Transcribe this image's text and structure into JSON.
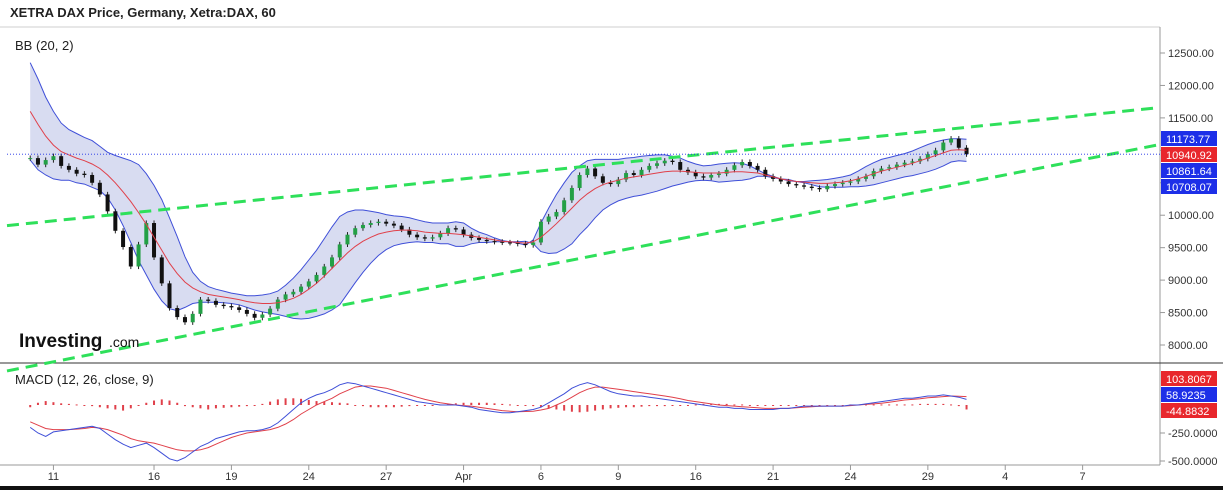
{
  "header": {
    "title": "XETRA DAX Price, Germany, Xetra:DAX, 60"
  },
  "logo": {
    "main": "Investing",
    "suffix": ".com"
  },
  "colors": {
    "up": "#23a046",
    "down": "#111111",
    "band_fill": "#d8dcf1",
    "band_line": "#3f4fd8",
    "bb_mid": "#e0404a",
    "channel": "#2ee05a",
    "macd_line": "#3f4fd8",
    "signal_line": "#e0404a",
    "badge_red": "#e8272c",
    "badge_blue": "#1d2fe8"
  },
  "chart_data": [
    {
      "type": "line",
      "name": "price",
      "subtitle": "BB (20, 2)",
      "yticks": [
        "12500.00",
        "12000.00",
        "11500.00",
        "11000.00",
        "10500.00",
        "10000.00",
        "9500.00",
        "9000.00",
        "8500.00",
        "8000.00"
      ],
      "ylim": [
        7800,
        12650
      ],
      "x_labels": [
        "11",
        "16",
        "19",
        "24",
        "27",
        "Apr",
        "6",
        "9",
        "16",
        "21",
        "24",
        "29",
        "4",
        "7"
      ],
      "x_label_positions": [
        3,
        16,
        26,
        36,
        46,
        56,
        66,
        76,
        86,
        96,
        106,
        116,
        126,
        136
      ],
      "xlim": [
        -3,
        146
      ],
      "close_series": [
        10880,
        10780,
        10850,
        10910,
        10760,
        10700,
        10640,
        10620,
        10500,
        10320,
        10060,
        9760,
        9510,
        9210,
        9550,
        9880,
        9350,
        8950,
        8570,
        8430,
        8350,
        8480,
        8700,
        8680,
        8620,
        8600,
        8580,
        8540,
        8480,
        8420,
        8470,
        8560,
        8700,
        8780,
        8820,
        8900,
        8980,
        9080,
        9210,
        9350,
        9550,
        9700,
        9800,
        9850,
        9880,
        9900,
        9870,
        9840,
        9780,
        9700,
        9660,
        9640,
        9660,
        9720,
        9800,
        9780,
        9700,
        9650,
        9620,
        9600,
        9590,
        9580,
        9575,
        9560,
        9540,
        9580,
        9900,
        9980,
        10050,
        10230,
        10420,
        10620,
        10720,
        10600,
        10500,
        10480,
        10550,
        10650,
        10620,
        10700,
        10760,
        10800,
        10840,
        10820,
        10700,
        10660,
        10600,
        10580,
        10620,
        10640,
        10700,
        10770,
        10820,
        10760,
        10700,
        10600,
        10560,
        10520,
        10480,
        10460,
        10440,
        10420,
        10400,
        10450,
        10480,
        10500,
        10520,
        10560,
        10600,
        10680,
        10720,
        10740,
        10780,
        10810,
        10830,
        10870,
        10940,
        11000,
        11120,
        11180,
        11040,
        10940
      ],
      "bb_upper": [
        12350,
        12100,
        11820,
        11600,
        11420,
        11320,
        11260,
        11200,
        11150,
        11060,
        10970,
        10920,
        10880,
        10840,
        10780,
        10640,
        10460,
        10240,
        9960,
        9670,
        9360,
        9120,
        8980,
        8900,
        8860,
        8830,
        8800,
        8780,
        8760,
        8760,
        8770,
        8790,
        8830,
        8920,
        9030,
        9160,
        9310,
        9460,
        9640,
        9820,
        9980,
        10050,
        10080,
        10080,
        10060,
        10040,
        10010,
        9990,
        9980,
        9960,
        9930,
        9900,
        9880,
        9880,
        9880,
        9900,
        9880,
        9800,
        9740,
        9700,
        9650,
        9610,
        9590,
        9570,
        9540,
        9620,
        9880,
        10110,
        10320,
        10500,
        10660,
        10760,
        10840,
        10860,
        10860,
        10860,
        10860,
        10880,
        10890,
        10910,
        10920,
        10930,
        10930,
        10910,
        10880,
        10830,
        10790,
        10760,
        10770,
        10790,
        10800,
        10810,
        10800,
        10760,
        10700,
        10640,
        10600,
        10560,
        10530,
        10520,
        10520,
        10530,
        10540,
        10550,
        10570,
        10590,
        10620,
        10680,
        10750,
        10810,
        10860,
        10890,
        10920,
        10950,
        10990,
        11040,
        11090,
        11130,
        11160,
        11180,
        11180,
        11170
      ],
      "bb_mid": [
        11600,
        11400,
        11220,
        11080,
        10980,
        10930,
        10880,
        10840,
        10790,
        10720,
        10620,
        10500,
        10360,
        10210,
        10040,
        9860,
        9660,
        9460,
        9260,
        9100,
        8970,
        8880,
        8820,
        8780,
        8760,
        8740,
        8720,
        8700,
        8670,
        8650,
        8640,
        8640,
        8650,
        8680,
        8720,
        8780,
        8860,
        8950,
        9060,
        9180,
        9300,
        9420,
        9520,
        9600,
        9660,
        9710,
        9740,
        9760,
        9770,
        9770,
        9760,
        9740,
        9730,
        9720,
        9720,
        9710,
        9700,
        9680,
        9660,
        9640,
        9620,
        9600,
        9590,
        9580,
        9570,
        9590,
        9660,
        9760,
        9870,
        9990,
        10110,
        10230,
        10330,
        10410,
        10470,
        10510,
        10540,
        10570,
        10590,
        10610,
        10630,
        10650,
        10670,
        10680,
        10680,
        10670,
        10660,
        10650,
        10650,
        10650,
        10660,
        10670,
        10670,
        10660,
        10650,
        10620,
        10590,
        10560,
        10540,
        10520,
        10510,
        10500,
        10490,
        10490,
        10500,
        10510,
        10530,
        10560,
        10600,
        10640,
        10680,
        10710,
        10740,
        10770,
        10800,
        10840,
        10880,
        10920,
        10960,
        11000,
        11010,
        11000
      ],
      "bb_lower": [
        10850,
        10700,
        10620,
        10560,
        10540,
        10540,
        10500,
        10480,
        10430,
        10380,
        10270,
        10080,
        9840,
        9580,
        9300,
        9080,
        8860,
        8680,
        8560,
        8530,
        8580,
        8640,
        8660,
        8660,
        8660,
        8650,
        8640,
        8620,
        8580,
        8540,
        8510,
        8490,
        8470,
        8440,
        8410,
        8400,
        8410,
        8440,
        8480,
        8540,
        8620,
        8790,
        8960,
        9120,
        9260,
        9380,
        9470,
        9530,
        9560,
        9580,
        9590,
        9580,
        9580,
        9560,
        9560,
        9520,
        9520,
        9560,
        9580,
        9580,
        9590,
        9590,
        9590,
        9590,
        9600,
        9560,
        9440,
        9410,
        9420,
        9480,
        9560,
        9700,
        9820,
        9960,
        10080,
        10160,
        10220,
        10260,
        10290,
        10310,
        10340,
        10370,
        10410,
        10450,
        10480,
        10510,
        10530,
        10540,
        10530,
        10510,
        10520,
        10530,
        10540,
        10560,
        10600,
        10600,
        10580,
        10560,
        10550,
        10520,
        10500,
        10470,
        10440,
        10430,
        10430,
        10430,
        10440,
        10440,
        10450,
        10470,
        10500,
        10530,
        10560,
        10590,
        10610,
        10640,
        10670,
        10710,
        10760,
        10820,
        10840,
        10830
      ],
      "channel_upper": {
        "x": [
          -3,
          146
        ],
        "y": [
          9840,
          11660
        ]
      },
      "channel_lower": {
        "x": [
          -3,
          146
        ],
        "y": [
          7600,
          11090
        ]
      },
      "price_line": 10940.92,
      "last_values": [
        {
          "label": "11173.77",
          "value": 11173.77,
          "color": "blue"
        },
        {
          "label": "10940.92",
          "value": 10940.92,
          "color": "red"
        },
        {
          "label": "10861.64",
          "value": 10861.64,
          "color": "blue"
        },
        {
          "label": "10708.07",
          "value": 10708.07,
          "color": "blue"
        }
      ]
    },
    {
      "type": "line",
      "name": "macd",
      "subtitle": "MACD (12, 26, close, 9)",
      "yticks": [
        "-250.0000",
        "-500.0000"
      ],
      "ytick_values": [
        -250,
        -500
      ],
      "ylim": [
        -520,
        260
      ],
      "macd": [
        -200,
        -250,
        -280,
        -240,
        -230,
        -220,
        -210,
        -200,
        -190,
        -210,
        -260,
        -310,
        -350,
        -380,
        -360,
        -340,
        -380,
        -430,
        -480,
        -500,
        -470,
        -420,
        -370,
        -340,
        -300,
        -280,
        -260,
        -240,
        -230,
        -230,
        -220,
        -200,
        -160,
        -100,
        -40,
        20,
        60,
        90,
        110,
        140,
        180,
        200,
        190,
        170,
        150,
        130,
        110,
        90,
        70,
        50,
        30,
        20,
        10,
        0,
        0,
        0,
        -10,
        -20,
        -40,
        -50,
        -60,
        -70,
        -70,
        -60,
        -50,
        -40,
        -20,
        20,
        60,
        100,
        150,
        180,
        200,
        180,
        150,
        120,
        100,
        90,
        80,
        80,
        70,
        60,
        50,
        40,
        30,
        20,
        10,
        0,
        -10,
        -20,
        -20,
        -30,
        -30,
        -40,
        -40,
        -40,
        -40,
        -30,
        -30,
        -20,
        -10,
        -10,
        -10,
        -10,
        -10,
        -10,
        0,
        0,
        10,
        20,
        30,
        40,
        50,
        60,
        60,
        70,
        80,
        80,
        90,
        80,
        70,
        50
      ],
      "signal": [
        -150,
        -180,
        -210,
        -220,
        -220,
        -220,
        -215,
        -210,
        -200,
        -205,
        -220,
        -245,
        -270,
        -300,
        -320,
        -330,
        -340,
        -360,
        -380,
        -400,
        -410,
        -410,
        -400,
        -380,
        -350,
        -320,
        -290,
        -270,
        -250,
        -240,
        -230,
        -220,
        -200,
        -170,
        -130,
        -80,
        -40,
        0,
        30,
        60,
        100,
        130,
        160,
        170,
        170,
        160,
        150,
        130,
        110,
        90,
        70,
        50,
        35,
        20,
        10,
        0,
        -5,
        -10,
        -20,
        -30,
        -40,
        -50,
        -55,
        -60,
        -58,
        -55,
        -45,
        -30,
        0,
        30,
        70,
        110,
        140,
        160,
        160,
        150,
        140,
        130,
        120,
        110,
        100,
        90,
        80,
        70,
        55,
        40,
        30,
        20,
        10,
        0,
        -5,
        -10,
        -15,
        -20,
        -25,
        -30,
        -30,
        -30,
        -30,
        -25,
        -20,
        -15,
        -12,
        -10,
        -10,
        -10,
        -5,
        0,
        5,
        10,
        15,
        25,
        35,
        45,
        50,
        55,
        65,
        70,
        75,
        80,
        78,
        75
      ],
      "histogram": [
        -20,
        20,
        35,
        25,
        15,
        10,
        5,
        -5,
        -10,
        -20,
        -30,
        -40,
        -50,
        -30,
        0,
        20,
        40,
        50,
        40,
        20,
        -10,
        -20,
        -30,
        -40,
        -30,
        -25,
        -20,
        -15,
        -10,
        -5,
        10,
        30,
        50,
        60,
        60,
        55,
        45,
        35,
        30,
        25,
        20,
        15,
        0,
        -10,
        -20,
        -20,
        -20,
        -20,
        -15,
        -10,
        -5,
        0,
        0,
        5,
        10,
        15,
        20,
        20,
        20,
        20,
        15,
        10,
        5,
        0,
        -5,
        -10,
        -20,
        -30,
        -40,
        -50,
        -60,
        -65,
        -60,
        -50,
        -40,
        -30,
        -25,
        -20,
        -20,
        -15,
        -10,
        -10,
        -10,
        -5,
        -5,
        0,
        5,
        10,
        10,
        10,
        10,
        5,
        5,
        0,
        0,
        -5,
        -5,
        -5,
        -5,
        -5,
        -5,
        -5,
        -5,
        -5,
        -5,
        0,
        5,
        5,
        5,
        5,
        5,
        5,
        5,
        5,
        5,
        10,
        10,
        10,
        10,
        5,
        -10,
        -40
      ],
      "last_values": [
        {
          "label": "103.8067",
          "value": 103.8067,
          "color": "red"
        },
        {
          "label": "58.9235",
          "value": 58.9235,
          "color": "blue"
        },
        {
          "label": "-44.8832",
          "value": -44.8832,
          "color": "red"
        }
      ]
    }
  ]
}
